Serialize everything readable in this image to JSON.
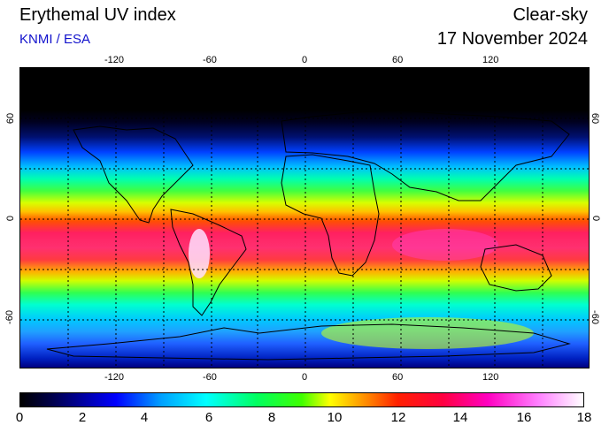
{
  "header": {
    "title": "Erythemal UV index",
    "credit": "KNMI / ESA",
    "mode": "Clear-sky",
    "date": "17 November 2024"
  },
  "map": {
    "lon_ticks": [
      "-120",
      "-60",
      "0",
      "60",
      "120"
    ],
    "lat_ticks": [
      "60",
      "0",
      "-60"
    ]
  },
  "colorbar": {
    "labels": [
      "0",
      "2",
      "4",
      "6",
      "8",
      "10",
      "12",
      "14",
      "16",
      "18"
    ]
  }
}
